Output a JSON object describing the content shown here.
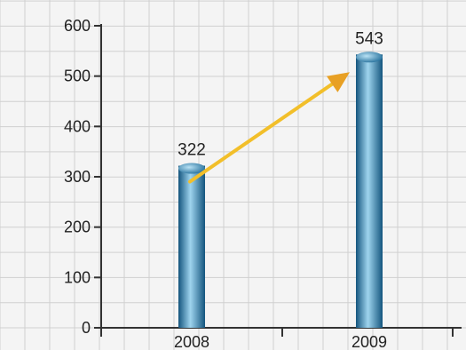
{
  "chart_data": {
    "type": "bar",
    "title": "",
    "xlabel": "",
    "ylabel": "",
    "categories": [
      "2008",
      "2009"
    ],
    "values": [
      322,
      543
    ],
    "data_labels": [
      "322",
      "543"
    ],
    "ylim": [
      0,
      600
    ],
    "yticks": [
      "0",
      "100",
      "200",
      "300",
      "400",
      "500",
      "600"
    ],
    "grid": true,
    "annotation": "arrow from 2008 bar to 2009 bar indicating increase",
    "colors": {
      "bar_dark": "#14557e",
      "bar_light": "#9ed4ee",
      "arrow": "#f2bf2a",
      "arrow_head": "#e8a024",
      "grid": "#d0d0d0",
      "axis": "#333333",
      "background": "#f4f4f4"
    }
  }
}
